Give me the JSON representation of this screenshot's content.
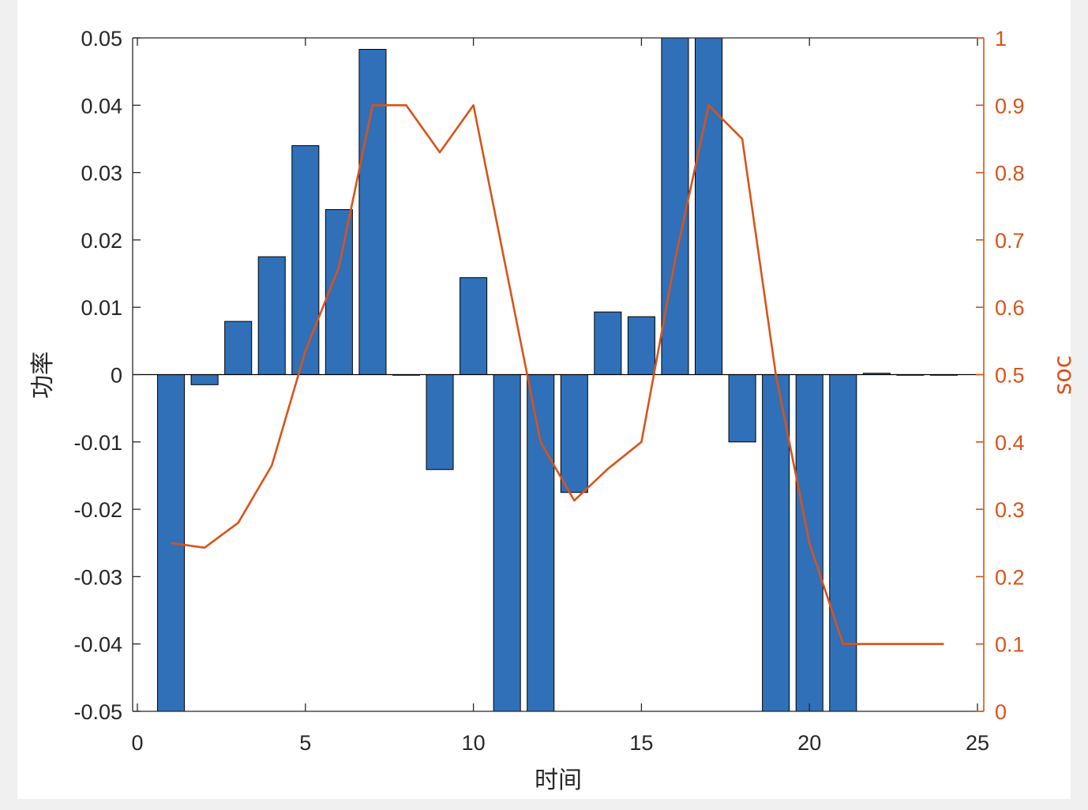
{
  "chart_data": {
    "type": "bar",
    "xlabel": "时间",
    "ylabel_left": "功率",
    "ylabel_right": "soc",
    "xlim": [
      0,
      25
    ],
    "ylim_left": [
      -0.05,
      0.05
    ],
    "ylim_right": [
      0,
      1
    ],
    "x_ticks": [
      "0",
      "5",
      "10",
      "15",
      "20",
      "25"
    ],
    "y_left_ticks": [
      "0.05",
      "0.04",
      "0.03",
      "0.02",
      "0.01",
      "0",
      "-0.01",
      "-0.02",
      "-0.03",
      "-0.04",
      "-0.05"
    ],
    "y_right_ticks": [
      "1",
      "0.9",
      "0.8",
      "0.7",
      "0.6",
      "0.5",
      "0.4",
      "0.3",
      "0.2",
      "0.1",
      "0"
    ],
    "grid": false,
    "series": [
      {
        "axis": "left",
        "type": "bar",
        "color": "#3070b8",
        "x": [
          1,
          2,
          3,
          4,
          5,
          6,
          7,
          8,
          9,
          10,
          11,
          12,
          13,
          14,
          15,
          16,
          17,
          18,
          19,
          20,
          21,
          22,
          23,
          24
        ],
        "values": [
          -0.05,
          -0.0015,
          0.0079,
          0.0175,
          0.034,
          0.0245,
          0.0483,
          0,
          -0.0141,
          0.0144,
          -0.05,
          -0.05,
          -0.0175,
          0.0093,
          0.0086,
          0.05,
          0.05,
          -0.01,
          -0.05,
          -0.05,
          -0.05,
          0.0002,
          0,
          0
        ]
      },
      {
        "axis": "right",
        "type": "line",
        "color": "#d95319",
        "x": [
          1,
          2,
          3,
          4,
          5,
          6,
          7,
          8,
          9,
          10,
          11,
          12,
          13,
          14,
          15,
          16,
          17,
          18,
          19,
          20,
          21,
          22,
          23,
          24
        ],
        "values": [
          0.25,
          0.243,
          0.28,
          0.365,
          0.535,
          0.66,
          0.9,
          0.9,
          0.83,
          0.9,
          0.65,
          0.4,
          0.313,
          0.36,
          0.4,
          0.67,
          0.9,
          0.85,
          0.5,
          0.25,
          0.1,
          0.1,
          0.1,
          0.1
        ]
      }
    ]
  }
}
